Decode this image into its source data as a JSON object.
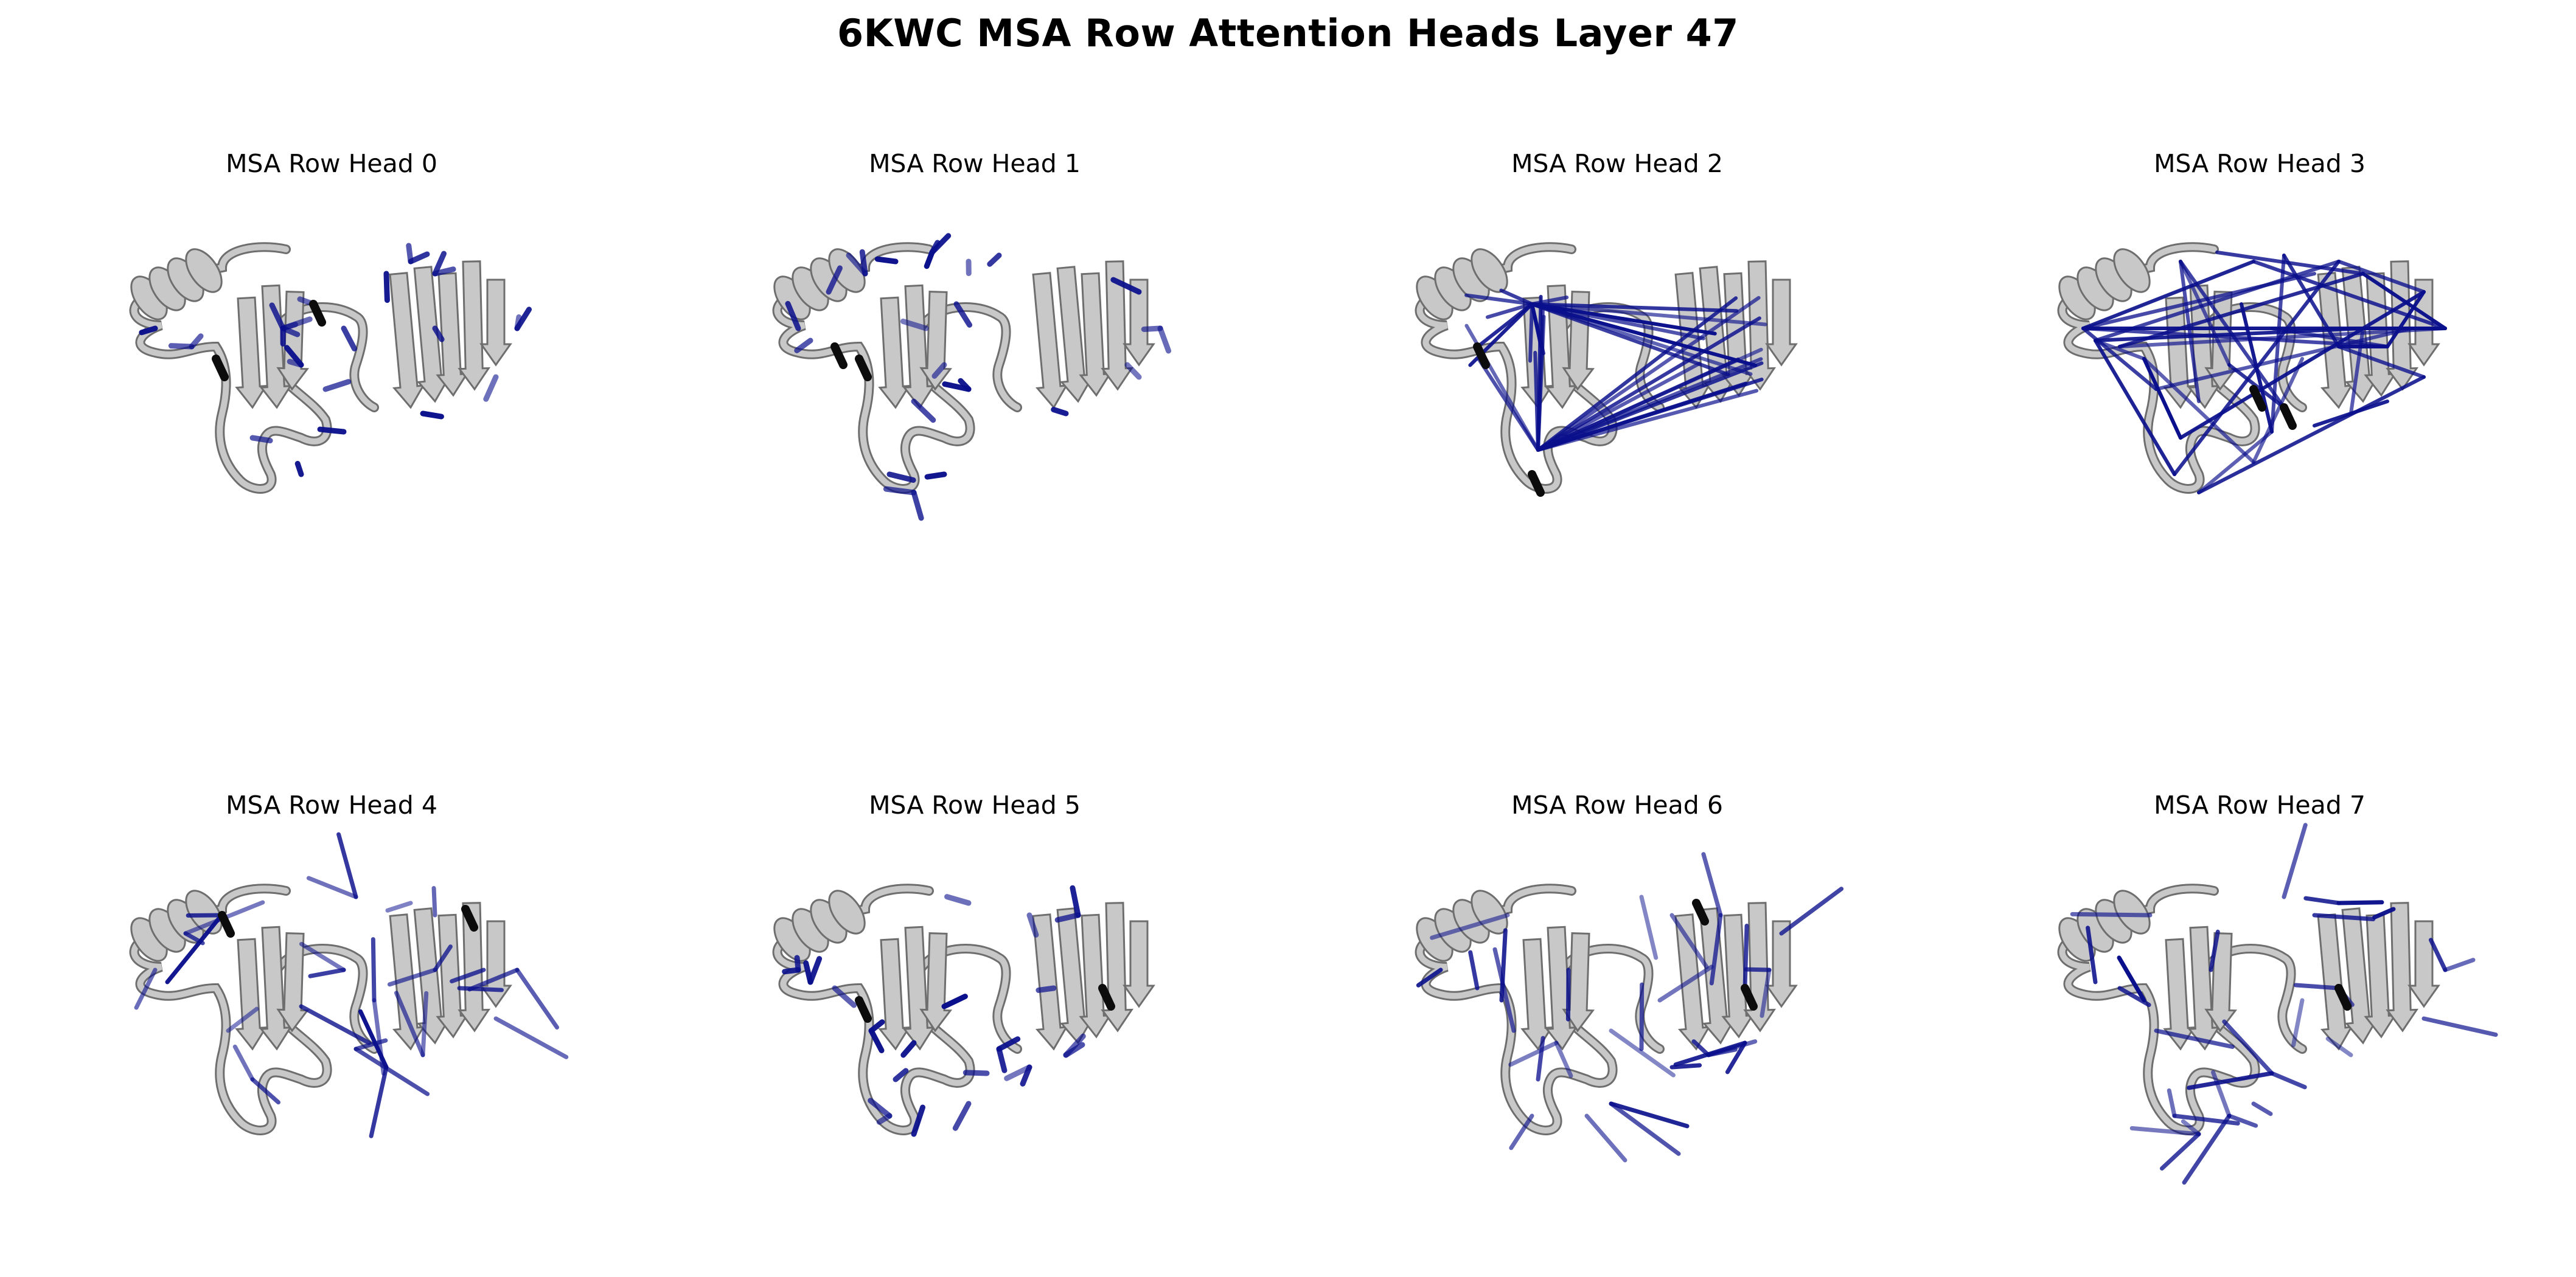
{
  "figure_title": "6KWC MSA Row Attention Heads Layer 47",
  "colors": {
    "background": "#ffffff",
    "ribbon": "#c8c8c8",
    "ribbon_outline": "#6e6e6e",
    "attention": "#0a0f8c",
    "highlight": "#0c0c0c"
  },
  "panels": [
    {
      "title": "MSA Row Head 0",
      "pattern": "short"
    },
    {
      "title": "MSA Row Head 1",
      "pattern": "short"
    },
    {
      "title": "MSA Row Head 2",
      "pattern": "fan"
    },
    {
      "title": "MSA Row Head 3",
      "pattern": "web"
    },
    {
      "title": "MSA Row Head 4",
      "pattern": "medium"
    },
    {
      "title": "MSA Row Head 5",
      "pattern": "short"
    },
    {
      "title": "MSA Row Head 6",
      "pattern": "medium"
    },
    {
      "title": "MSA Row Head 7",
      "pattern": "medium"
    }
  ]
}
